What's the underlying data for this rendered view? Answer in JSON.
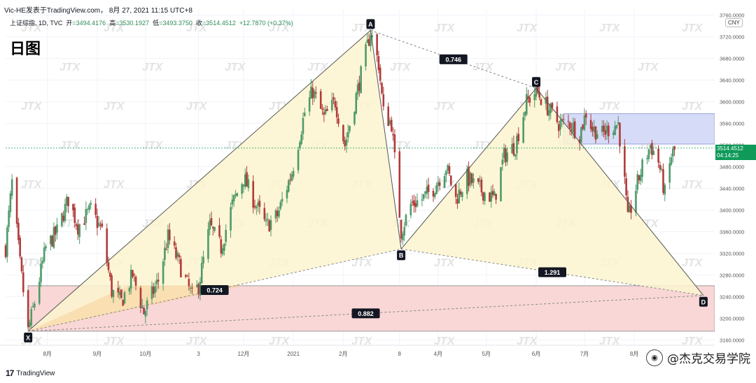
{
  "header": {
    "title": "Vic-HE发表于TradingView.com， 8月 27, 2021 11:15 UTC+8",
    "symbol_line": "上证综指, 1D, TVC",
    "open_label": "开",
    "open": "=3494.4176",
    "high_label": "高",
    "high": "=3530.1927",
    "low_label": "低",
    "low": "=3493.3750",
    "close_label": "收",
    "close": "=3514.4512",
    "change": "+12.7870 (+0.37%)",
    "period": "日图"
  },
  "currency": "CNY",
  "last_price": {
    "value": "3514.4512",
    "countdown": "04:14:25"
  },
  "brand": {
    "logo": "17",
    "name": "TradingView"
  },
  "watermark": "@杰克交易学院",
  "bg_watermark_text": "JTX",
  "colors": {
    "up": "#4f9a6a",
    "down": "#b23a3a",
    "harmonic_fill": "#fbf4cf",
    "harmonic_fill_lower": "#f7c98f",
    "prz_fill": "#f9d7d7",
    "supply_fill": "#d6dcf7",
    "label_bg": "#131722",
    "label_text": "#ffffff",
    "axis_text": "#555555",
    "grid": "#f0f3fa",
    "last_price_bg": "#0f9a5a"
  },
  "chart_data": {
    "type": "candlestick",
    "title": "上证综指, 1D, TVC",
    "ylim": [
      3150,
      3770
    ],
    "y_ticks": [
      "3160.0000",
      "3200.0000",
      "3240.0000",
      "3280.0000",
      "3320.0000",
      "3360.0000",
      "3400.0000",
      "3440.0000",
      "3480.0000",
      "3520.0000",
      "3560.0000",
      "3600.0000",
      "3640.0000",
      "3680.0000",
      "3720.0000",
      "3760.0000"
    ],
    "x_ticks": [
      {
        "label": "8月",
        "date": "2020-08"
      },
      {
        "label": "9月",
        "date": "2020-09"
      },
      {
        "label": "10月",
        "date": "2020-10"
      },
      {
        "label": "3",
        "date": "2020-11-03"
      },
      {
        "label": "12月",
        "date": "2020-12"
      },
      {
        "label": "2021",
        "date": "2021-01"
      },
      {
        "label": "2月",
        "date": "2021-02"
      },
      {
        "label": "8",
        "date": "2021-03-08"
      },
      {
        "label": "4月",
        "date": "2021-04"
      },
      {
        "label": "5月",
        "date": "2021-05"
      },
      {
        "label": "6月",
        "date": "2021-06"
      },
      {
        "label": "7月",
        "date": "2021-07"
      },
      {
        "label": "8月",
        "date": "2021-08"
      }
    ],
    "xrange": [
      "2020-07-06",
      "2021-09-20"
    ],
    "pattern": {
      "name": "XABCD harmonic",
      "points": [
        {
          "label": "X",
          "date": "2020-07-20",
          "price": 3176
        },
        {
          "label": "A",
          "date": "2021-02-18",
          "price": 3732
        },
        {
          "label": "B",
          "date": "2021-03-09",
          "price": 3328
        },
        {
          "label": "C",
          "date": "2021-06-01",
          "price": 3625
        },
        {
          "label": "D",
          "date": "2021-09-13",
          "price": 3242
        }
      ],
      "ratios": [
        {
          "label": "0.746",
          "from": "A",
          "to": "C"
        },
        {
          "label": "0.724",
          "from": "X",
          "to": "B"
        },
        {
          "label": "1.291",
          "from": "B",
          "to": "D"
        },
        {
          "label": "0.882",
          "from": "X",
          "to": "D"
        }
      ]
    },
    "zones": [
      {
        "name": "PRZ",
        "start": "2020-07-20",
        "end": "2021-09-20",
        "top": 3260,
        "bottom": 3176
      },
      {
        "name": "supply",
        "start": "2021-06-18",
        "end": "2021-09-20",
        "top": 3578,
        "bottom": 3522
      }
    ],
    "series": [
      {
        "name": "OHLC",
        "anchors": [
          [
            "2020-07-06",
            3330
          ],
          [
            "2020-07-10",
            3450
          ],
          [
            "2020-07-15",
            3300
          ],
          [
            "2020-07-20",
            3176
          ],
          [
            "2020-07-24",
            3230
          ],
          [
            "2020-07-31",
            3330
          ],
          [
            "2020-08-07",
            3360
          ],
          [
            "2020-08-14",
            3420
          ],
          [
            "2020-08-20",
            3370
          ],
          [
            "2020-08-28",
            3400
          ],
          [
            "2020-09-04",
            3360
          ],
          [
            "2020-09-10",
            3250
          ],
          [
            "2020-09-16",
            3230
          ],
          [
            "2020-09-23",
            3280
          ],
          [
            "2020-09-30",
            3210
          ],
          [
            "2020-10-09",
            3270
          ],
          [
            "2020-10-15",
            3350
          ],
          [
            "2020-10-22",
            3300
          ],
          [
            "2020-10-30",
            3240
          ],
          [
            "2020-11-03",
            3260
          ],
          [
            "2020-11-10",
            3370
          ],
          [
            "2020-11-17",
            3330
          ],
          [
            "2020-11-24",
            3410
          ],
          [
            "2020-12-01",
            3460
          ],
          [
            "2020-12-07",
            3420
          ],
          [
            "2020-12-15",
            3370
          ],
          [
            "2020-12-22",
            3390
          ],
          [
            "2020-12-31",
            3470
          ],
          [
            "2021-01-08",
            3580
          ],
          [
            "2021-01-13",
            3620
          ],
          [
            "2021-01-20",
            3570
          ],
          [
            "2021-01-27",
            3600
          ],
          [
            "2021-02-02",
            3520
          ],
          [
            "2021-02-09",
            3610
          ],
          [
            "2021-02-18",
            3730
          ],
          [
            "2021-02-23",
            3670
          ],
          [
            "2021-02-26",
            3580
          ],
          [
            "2021-03-03",
            3560
          ],
          [
            "2021-03-09",
            3360
          ],
          [
            "2021-03-15",
            3410
          ],
          [
            "2021-03-22",
            3420
          ],
          [
            "2021-03-29",
            3440
          ],
          [
            "2021-04-06",
            3480
          ],
          [
            "2021-04-12",
            3420
          ],
          [
            "2021-04-19",
            3460
          ],
          [
            "2021-04-26",
            3440
          ],
          [
            "2021-05-06",
            3420
          ],
          [
            "2021-05-12",
            3500
          ],
          [
            "2021-05-19",
            3520
          ],
          [
            "2021-05-26",
            3600
          ],
          [
            "2021-06-01",
            3620
          ],
          [
            "2021-06-08",
            3590
          ],
          [
            "2021-06-15",
            3560
          ],
          [
            "2021-06-22",
            3560
          ],
          [
            "2021-06-28",
            3540
          ],
          [
            "2021-07-02",
            3580
          ],
          [
            "2021-07-06",
            3550
          ],
          [
            "2021-07-12",
            3540
          ],
          [
            "2021-07-16",
            3550
          ],
          [
            "2021-07-22",
            3560
          ],
          [
            "2021-07-26",
            3450
          ],
          [
            "2021-07-28",
            3380
          ],
          [
            "2021-08-02",
            3440
          ],
          [
            "2021-08-06",
            3480
          ],
          [
            "2021-08-11",
            3520
          ],
          [
            "2021-08-16",
            3490
          ],
          [
            "2021-08-20",
            3430
          ],
          [
            "2021-08-24",
            3500
          ],
          [
            "2021-08-27",
            3514
          ]
        ]
      }
    ]
  }
}
